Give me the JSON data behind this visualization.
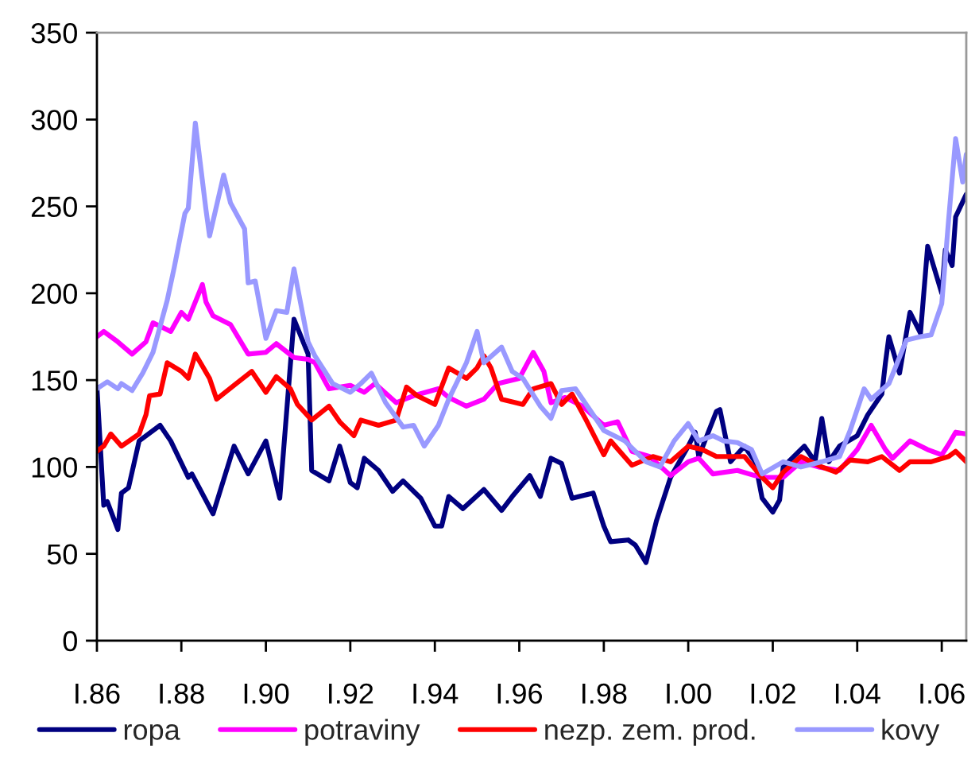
{
  "chart_data": {
    "type": "line",
    "xlim": [
      "1986-01",
      "2006-08"
    ],
    "xticks": [
      {
        "value": "1986-01",
        "label": "I.86"
      },
      {
        "value": "1988-01",
        "label": "I.88"
      },
      {
        "value": "1990-01",
        "label": "I.90"
      },
      {
        "value": "1992-01",
        "label": "I.92"
      },
      {
        "value": "1994-01",
        "label": "I.94"
      },
      {
        "value": "1996-01",
        "label": "I.96"
      },
      {
        "value": "1998-01",
        "label": "I.98"
      },
      {
        "value": "2000-01",
        "label": "I.00"
      },
      {
        "value": "2002-01",
        "label": "I.02"
      },
      {
        "value": "2004-01",
        "label": "I.04"
      },
      {
        "value": "2006-01",
        "label": "I.06"
      }
    ],
    "ylim": [
      0,
      350
    ],
    "yticks": [
      0,
      50,
      100,
      150,
      200,
      250,
      300,
      350
    ],
    "grid": false,
    "legend": "bottom",
    "marker": "none",
    "line_style": "solid",
    "series": [
      {
        "name": "ropa",
        "color": "#000080",
        "x": [
          "1986-01",
          "1986-03",
          "1986-04",
          "1986-07",
          "1986-08",
          "1986-10",
          "1987-01",
          "1987-07",
          "1987-10",
          "1988-03",
          "1988-04",
          "1988-10",
          "1989-04",
          "1989-08",
          "1990-01",
          "1990-05",
          "1990-09",
          "1991-01",
          "1991-02",
          "1991-07",
          "1991-10",
          "1992-01",
          "1992-03",
          "1992-05",
          "1992-09",
          "1993-01",
          "1993-04",
          "1993-09",
          "1994-01",
          "1994-03",
          "1994-05",
          "1994-09",
          "1995-03",
          "1995-08",
          "1995-11",
          "1996-04",
          "1996-07",
          "1996-10",
          "1997-01",
          "1997-04",
          "1997-10",
          "1998-01",
          "1998-03",
          "1998-08",
          "1998-10",
          "1999-01",
          "1999-04",
          "1999-08",
          "2000-01",
          "2000-03",
          "2000-04",
          "2000-09",
          "2000-10",
          "2001-01",
          "2001-05",
          "2001-08",
          "2001-10",
          "2002-01",
          "2002-03",
          "2002-04",
          "2002-10",
          "2003-01",
          "2003-03",
          "2003-05",
          "2003-08",
          "2004-01",
          "2004-04",
          "2004-08",
          "2004-09",
          "2004-10",
          "2005-01",
          "2005-04",
          "2005-07",
          "2005-09",
          "2006-01",
          "2006-02",
          "2006-04",
          "2006-05",
          "2006-08"
        ],
        "values": [
          146,
          78,
          80,
          64,
          85,
          88,
          115,
          124,
          115,
          94,
          96,
          73,
          112,
          96,
          115,
          82,
          185,
          165,
          98,
          92,
          112,
          91,
          88,
          105,
          98,
          86,
          92,
          82,
          66,
          66,
          83,
          76,
          87,
          75,
          83,
          95,
          83,
          105,
          102,
          82,
          85,
          66,
          57,
          58,
          55,
          45,
          69,
          94,
          112,
          120,
          106,
          132,
          133,
          103,
          112,
          103,
          82,
          74,
          81,
          100,
          112,
          103,
          128,
          103,
          112,
          118,
          130,
          142,
          160,
          175,
          154,
          189,
          177,
          227,
          200,
          225,
          216,
          244,
          257
        ]
      },
      {
        "name": "potraviny",
        "color": "#ff00ff",
        "x": [
          "1986-01",
          "1986-03",
          "1986-07",
          "1986-11",
          "1987-03",
          "1987-05",
          "1987-10",
          "1988-01",
          "1988-03",
          "1988-07",
          "1988-08",
          "1988-10",
          "1989-03",
          "1989-08",
          "1990-01",
          "1990-04",
          "1990-09",
          "1991-01",
          "1991-03",
          "1991-07",
          "1992-01",
          "1992-05",
          "1992-08",
          "1993-02",
          "1993-07",
          "1994-02",
          "1994-05",
          "1994-10",
          "1995-03",
          "1995-07",
          "1996-01",
          "1996-05",
          "1996-08",
          "1996-10",
          "1997-02",
          "1997-07",
          "1998-01",
          "1998-05",
          "1998-09",
          "1999-02",
          "1999-08",
          "2000-01",
          "2000-04",
          "2000-08",
          "2001-03",
          "2001-08",
          "2001-11",
          "2002-04",
          "2002-09",
          "2003-02",
          "2003-08",
          "2004-01",
          "2004-05",
          "2004-09",
          "2004-11",
          "2005-04",
          "2005-09",
          "2006-01",
          "2006-03",
          "2006-05",
          "2006-08"
        ],
        "values": [
          175,
          178,
          172,
          165,
          172,
          183,
          178,
          189,
          185,
          205,
          195,
          187,
          182,
          165,
          166,
          171,
          163,
          162,
          160,
          145,
          147,
          143,
          148,
          137,
          141,
          145,
          140,
          135,
          139,
          148,
          151,
          166,
          155,
          137,
          140,
          135,
          124,
          126,
          109,
          106,
          95,
          103,
          105,
          96,
          98,
          95,
          94,
          94,
          103,
          100,
          98,
          110,
          124,
          110,
          105,
          115,
          110,
          107,
          113,
          120,
          119
        ]
      },
      {
        "name": "nezp. zem. prod.",
        "color": "#ff0000",
        "x": [
          "1986-01",
          "1986-03",
          "1986-05",
          "1986-08",
          "1987-01",
          "1987-03",
          "1987-04",
          "1987-07",
          "1987-09",
          "1988-01",
          "1988-03",
          "1988-05",
          "1988-09",
          "1988-11",
          "1989-04",
          "1989-09",
          "1990-01",
          "1990-04",
          "1990-08",
          "1990-10",
          "1991-02",
          "1991-07",
          "1991-10",
          "1992-02",
          "1992-04",
          "1992-09",
          "1993-02",
          "1993-05",
          "1993-08",
          "1994-01",
          "1994-05",
          "1994-10",
          "1995-01",
          "1995-03",
          "1995-05",
          "1995-08",
          "1996-02",
          "1996-05",
          "1996-10",
          "1997-01",
          "1997-04",
          "1997-08",
          "1998-01",
          "1998-03",
          "1998-09",
          "1999-03",
          "1999-08",
          "2000-01",
          "2000-05",
          "2000-09",
          "2001-05",
          "2001-10",
          "2002-01",
          "2002-04",
          "2002-09",
          "2003-03",
          "2003-07",
          "2003-11",
          "2004-04",
          "2004-08",
          "2005-01",
          "2005-04",
          "2005-10",
          "2006-03",
          "2006-05",
          "2006-08"
        ],
        "values": [
          109,
          112,
          119,
          112,
          119,
          130,
          141,
          142,
          160,
          155,
          151,
          165,
          151,
          139,
          147,
          155,
          143,
          152,
          145,
          136,
          127,
          135,
          126,
          118,
          127,
          124,
          127,
          146,
          141,
          136,
          157,
          151,
          157,
          164,
          157,
          139,
          136,
          145,
          148,
          136,
          142,
          127,
          107,
          115,
          101,
          106,
          103,
          112,
          110,
          106,
          106,
          94,
          88,
          97,
          106,
          100,
          97,
          104,
          103,
          106,
          98,
          103,
          103,
          106,
          109,
          103
        ]
      },
      {
        "name": "kovy",
        "color": "#9999ff",
        "x": [
          "1986-01",
          "1986-04",
          "1986-07",
          "1986-08",
          "1986-11",
          "1987-02",
          "1987-05",
          "1987-09",
          "1987-11",
          "1988-02",
          "1988-03",
          "1988-05",
          "1988-08",
          "1988-09",
          "1989-01",
          "1989-03",
          "1989-07",
          "1989-08",
          "1989-10",
          "1990-01",
          "1990-04",
          "1990-07",
          "1990-09",
          "1991-01",
          "1991-03",
          "1991-08",
          "1992-01",
          "1992-04",
          "1992-07",
          "1992-11",
          "1993-04",
          "1993-07",
          "1993-10",
          "1994-02",
          "1994-05",
          "1994-10",
          "1995-01",
          "1995-03",
          "1995-08",
          "1995-11",
          "1996-02",
          "1996-07",
          "1996-10",
          "1997-01",
          "1997-05",
          "1997-09",
          "1998-01",
          "1998-07",
          "1999-01",
          "1999-05",
          "1999-09",
          "2000-01",
          "2000-04",
          "2000-08",
          "2000-11",
          "2001-03",
          "2001-07",
          "2001-10",
          "2002-04",
          "2002-09",
          "2003-03",
          "2003-08",
          "2003-11",
          "2004-03",
          "2004-05",
          "2004-10",
          "2005-03",
          "2005-07",
          "2005-10",
          "2006-01",
          "2006-03",
          "2006-05",
          "2006-07",
          "2006-08"
        ],
        "values": [
          145,
          149,
          145,
          148,
          144,
          154,
          166,
          196,
          215,
          246,
          249,
          298,
          248,
          233,
          268,
          252,
          237,
          206,
          207,
          174,
          190,
          189,
          214,
          172,
          164,
          148,
          143,
          148,
          154,
          137,
          123,
          124,
          112,
          124,
          139,
          160,
          178,
          160,
          169,
          155,
          151,
          135,
          128,
          144,
          145,
          133,
          121,
          115,
          103,
          100,
          115,
          125,
          115,
          118,
          115,
          114,
          110,
          96,
          103,
          100,
          103,
          106,
          121,
          145,
          139,
          148,
          173,
          175,
          176,
          194,
          242,
          289,
          264,
          280
        ]
      }
    ]
  }
}
